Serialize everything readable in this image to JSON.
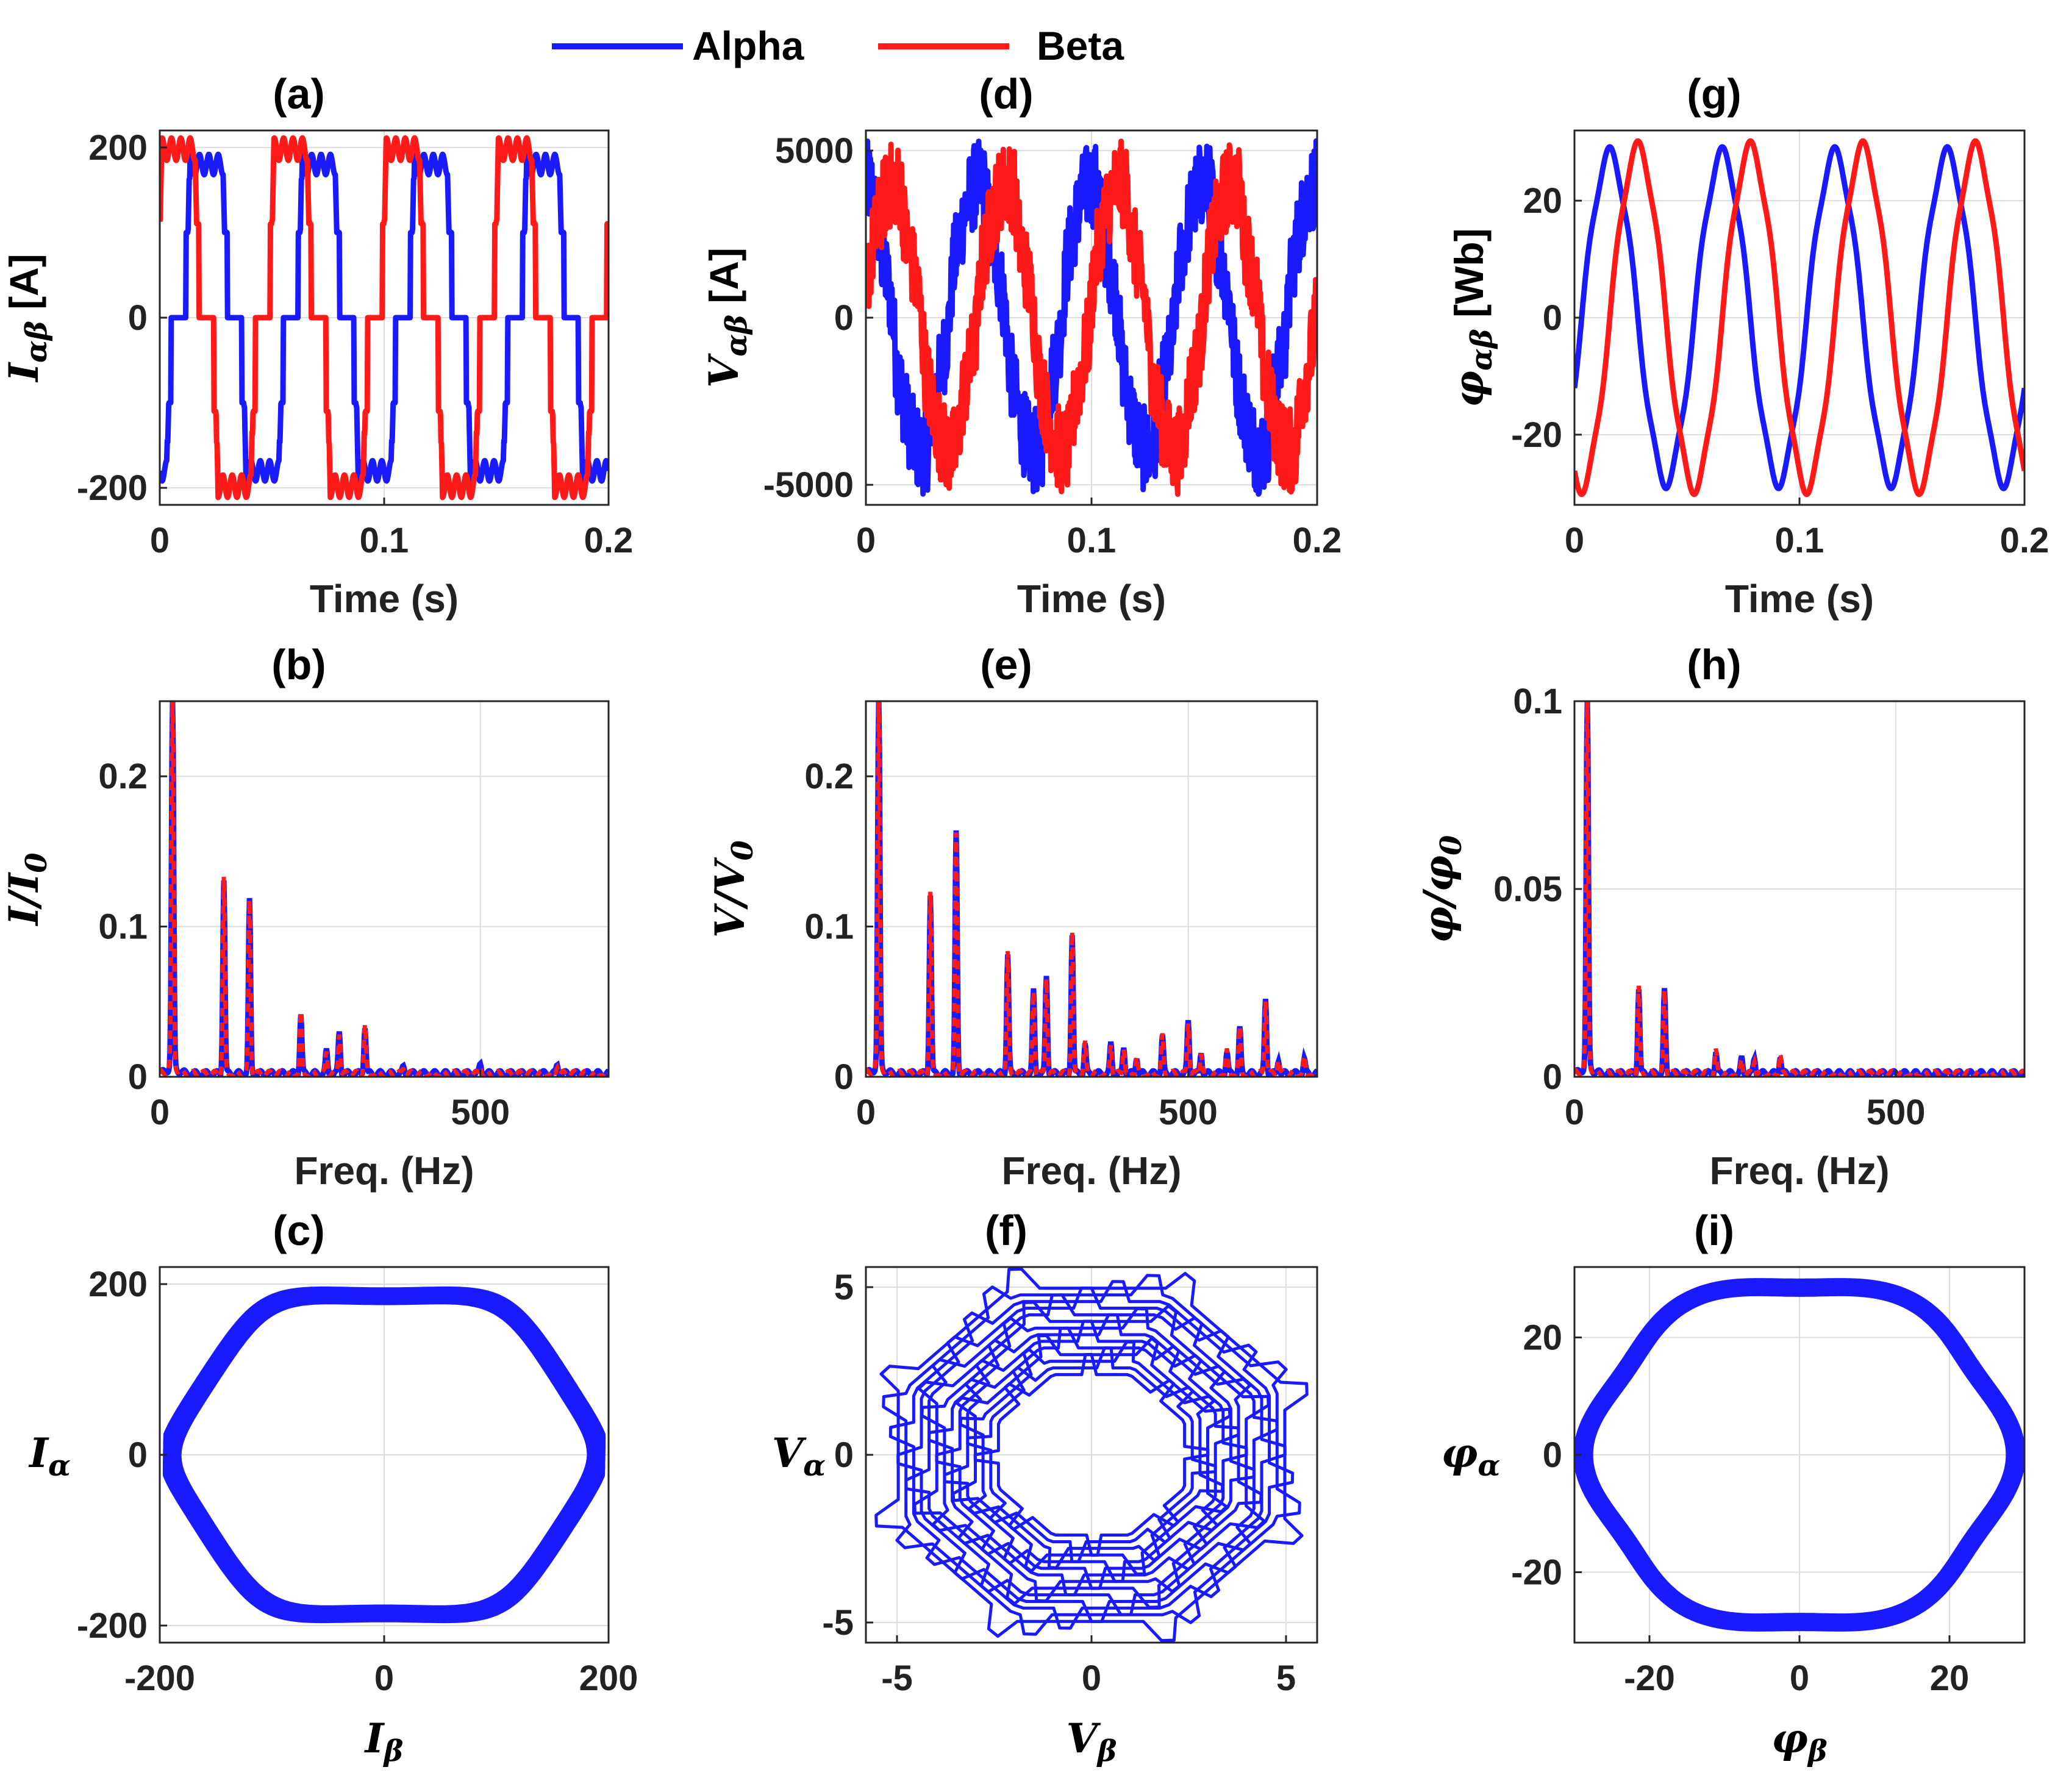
{
  "legend": {
    "alpha_label": "Alpha",
    "beta_label": "Beta",
    "alpha_color": "#1a1aff",
    "beta_color": "#ff1a1a"
  },
  "chart_data": [
    {
      "id": "a",
      "type": "line",
      "title": "(a)",
      "xlabel": "Time (s)",
      "ylabel_main": "I",
      "ylabel_sub": "αβ",
      "ylabel_unit": " [A]",
      "xlim": [
        0,
        0.2
      ],
      "ylim": [
        -220,
        220
      ],
      "xticks": [
        0,
        0.1,
        0.2
      ],
      "xticklabels": [
        "0",
        "0.1",
        "0.2"
      ],
      "yticks": [
        -200,
        0,
        200
      ],
      "yticklabels": [
        "-200",
        "0",
        "200"
      ],
      "series": [
        {
          "name": "Alpha",
          "signal": "six-step current",
          "amplitude": 200,
          "frequency_hz": 20,
          "phase_deg": -90
        },
        {
          "name": "Beta",
          "signal": "six-step current",
          "amplitude": 220,
          "frequency_hz": 20,
          "phase_deg": 0
        }
      ]
    },
    {
      "id": "d",
      "type": "line",
      "title": "(d)",
      "xlabel": "Time (s)",
      "ylabel_main": "V",
      "ylabel_sub": "αβ",
      "ylabel_unit": " [A]",
      "xlim": [
        0,
        0.2
      ],
      "ylim": [
        -5600,
        5600
      ],
      "xticks": [
        0,
        0.1,
        0.2
      ],
      "xticklabels": [
        "0",
        "0.1",
        "0.2"
      ],
      "yticks": [
        -5000,
        0,
        5000
      ],
      "yticklabels": [
        "-5000",
        "0",
        "5000"
      ],
      "series": [
        {
          "name": "Alpha",
          "signal": "noisy six-step voltage",
          "amplitude": 4000,
          "frequency_hz": 20,
          "phase_deg": 90
        },
        {
          "name": "Beta",
          "signal": "noisy six-step voltage",
          "amplitude": 4000,
          "frequency_hz": 20,
          "phase_deg": 0
        }
      ]
    },
    {
      "id": "g",
      "type": "line",
      "title": "(g)",
      "xlabel": "Time (s)",
      "ylabel_main": "φ",
      "ylabel_sub": "αβ",
      "ylabel_unit": " [Wb]",
      "xlim": [
        0,
        0.2
      ],
      "ylim": [
        -32,
        32
      ],
      "xticks": [
        0,
        0.1,
        0.2
      ],
      "xticklabels": [
        "0",
        "0.1",
        "0.2"
      ],
      "yticks": [
        -20,
        0,
        20
      ],
      "yticklabels": [
        "-20",
        "0",
        "20"
      ],
      "series": [
        {
          "name": "Alpha",
          "signal": "sinusoidal flux",
          "amplitude": 28,
          "frequency_hz": 20,
          "phase_deg": -23
        },
        {
          "name": "Beta",
          "signal": "sinusoidal flux",
          "amplitude": 29,
          "frequency_hz": 20,
          "phase_deg": -113
        }
      ]
    },
    {
      "id": "b",
      "type": "line",
      "title": "(b)",
      "xlabel": "Freq. (Hz)",
      "ylabel_main": "I/I",
      "ylabel_sub": "0",
      "ylabel_unit": "",
      "xlim": [
        0,
        700
      ],
      "ylim": [
        0,
        0.25
      ],
      "xticks": [
        0,
        500
      ],
      "xticklabels": [
        "0",
        "500"
      ],
      "yticks": [
        0,
        0.1,
        0.2
      ],
      "yticklabels": [
        "0",
        "0.1",
        "0.2"
      ],
      "peaks": [
        {
          "f": 20,
          "v": 0.25
        },
        {
          "f": 100,
          "v": 0.13
        },
        {
          "f": 140,
          "v": 0.115
        },
        {
          "f": 220,
          "v": 0.04
        },
        {
          "f": 260,
          "v": 0.015
        },
        {
          "f": 280,
          "v": 0.028
        },
        {
          "f": 320,
          "v": 0.032
        },
        {
          "f": 380,
          "v": 0.004
        },
        {
          "f": 500,
          "v": 0.006
        },
        {
          "f": 620,
          "v": 0.006
        }
      ]
    },
    {
      "id": "e",
      "type": "line",
      "title": "(e)",
      "xlabel": "Freq. (Hz)",
      "ylabel_main": "V/V",
      "ylabel_sub": "0",
      "ylabel_unit": "",
      "xlim": [
        0,
        700
      ],
      "ylim": [
        0,
        0.25
      ],
      "xticks": [
        0,
        500
      ],
      "xticklabels": [
        "0",
        "500"
      ],
      "yticks": [
        0,
        0.1,
        0.2
      ],
      "yticklabels": [
        "0",
        "0.1",
        "0.2"
      ],
      "peaks": [
        {
          "f": 20,
          "v": 0.25
        },
        {
          "f": 100,
          "v": 0.12
        },
        {
          "f": 140,
          "v": 0.16
        },
        {
          "f": 220,
          "v": 0.08
        },
        {
          "f": 260,
          "v": 0.055
        },
        {
          "f": 280,
          "v": 0.065
        },
        {
          "f": 320,
          "v": 0.094
        },
        {
          "f": 340,
          "v": 0.02
        },
        {
          "f": 380,
          "v": 0.02
        },
        {
          "f": 400,
          "v": 0.018
        },
        {
          "f": 420,
          "v": 0.012
        },
        {
          "f": 460,
          "v": 0.025
        },
        {
          "f": 500,
          "v": 0.035
        },
        {
          "f": 520,
          "v": 0.015
        },
        {
          "f": 560,
          "v": 0.015
        },
        {
          "f": 580,
          "v": 0.03
        },
        {
          "f": 620,
          "v": 0.05
        },
        {
          "f": 640,
          "v": 0.01
        },
        {
          "f": 680,
          "v": 0.01
        }
      ]
    },
    {
      "id": "h",
      "type": "line",
      "title": "(h)",
      "xlabel": "Freq. (Hz)",
      "ylabel_main": "φ/φ",
      "ylabel_sub": "0",
      "ylabel_unit": "",
      "xlim": [
        0,
        700
      ],
      "ylim": [
        0,
        0.1
      ],
      "xticks": [
        0,
        500
      ],
      "xticklabels": [
        "0",
        "500"
      ],
      "yticks": [
        0,
        0.05,
        0.1
      ],
      "yticklabels": [
        "0",
        "0.05",
        "0.1"
      ],
      "peaks": [
        {
          "f": 20,
          "v": 0.1
        },
        {
          "f": 100,
          "v": 0.023
        },
        {
          "f": 140,
          "v": 0.022
        },
        {
          "f": 220,
          "v": 0.006
        },
        {
          "f": 260,
          "v": 0.004
        },
        {
          "f": 280,
          "v": 0.004
        },
        {
          "f": 320,
          "v": 0.005
        }
      ]
    },
    {
      "id": "c",
      "type": "scatter",
      "title": "(c)",
      "xlabel_main": "I",
      "xlabel_sub": "β",
      "ylabel_main": "I",
      "ylabel_sub": "α",
      "xlim": [
        -200,
        200
      ],
      "ylim": [
        -220,
        220
      ],
      "xticks": [
        -200,
        0,
        200
      ],
      "xticklabels": [
        "-200",
        "0",
        "200"
      ],
      "yticks": [
        -200,
        0,
        200
      ],
      "yticklabels": [
        "-200",
        "0",
        "200"
      ],
      "trajectory": "hexagonal locus",
      "radius": 200,
      "loops": 9,
      "spread": 0.1
    },
    {
      "id": "f",
      "type": "scatter",
      "title": "(f)",
      "xlabel_main": "V",
      "xlabel_sub": "β",
      "ylabel_main": "V",
      "ylabel_sub": "α",
      "xlim": [
        -5.8,
        5.8
      ],
      "ylim": [
        -5.6,
        5.6
      ],
      "xticks": [
        -5,
        0,
        5
      ],
      "xticklabels": [
        "-5",
        "0",
        "5"
      ],
      "yticks": [
        -5,
        0,
        5
      ],
      "yticklabels": [
        "-5",
        "0",
        "5"
      ],
      "trajectory": "octagonal ring with spikes",
      "radius_outer": 5.4,
      "radius_inner": 2.6
    },
    {
      "id": "i",
      "type": "scatter",
      "title": "(i)",
      "xlabel_main": "φ",
      "xlabel_sub": "β",
      "ylabel_main": "φ",
      "ylabel_sub": "α",
      "xlim": [
        -30,
        30
      ],
      "ylim": [
        -32,
        32
      ],
      "xticks": [
        -20,
        0,
        20
      ],
      "xticklabels": [
        "-20",
        "0",
        "20"
      ],
      "yticks": [
        -20,
        0,
        20
      ],
      "yticklabels": [
        "-20",
        "0",
        "20"
      ],
      "trajectory": "near-circular locus",
      "radius": 29
    }
  ]
}
